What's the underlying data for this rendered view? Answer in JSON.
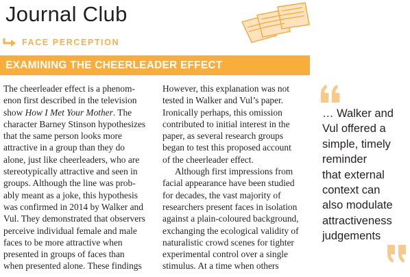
{
  "header": {
    "title": "Journal Club"
  },
  "section": {
    "label": "FACE PERCEPTION"
  },
  "banner": {
    "heading": "EXAMINING THE CHEERLEADER EFFECT"
  },
  "column_left": {
    "lines": [
      [
        "The cheerleader effect is a phenom-"
      ],
      [
        "enon first described in the television"
      ],
      [
        "show ",
        {
          "i": "How I Met Your Mother"
        },
        ". The"
      ],
      [
        "character Barney Stinson hypothesizes"
      ],
      [
        "that the same person looks more"
      ],
      [
        "attractive in a group than they do"
      ],
      [
        "alone, just like cheerleaders, who are"
      ],
      [
        "stereotypically attractive and seen in"
      ],
      [
        "groups. Although the line was prob-"
      ],
      [
        "ably meant as a joke, this hypothesis"
      ],
      [
        "was confirmed in 2014 by Walker and"
      ],
      [
        "Vul. They demonstrated that observers"
      ],
      [
        "perceive individual female and male"
      ],
      [
        "faces to be more attractive when"
      ],
      [
        "presented in groups of faces than"
      ],
      [
        "when presented alone. These findings"
      ]
    ]
  },
  "column_mid": {
    "lines": [
      [
        "However, this explanation was not"
      ],
      [
        "tested in Walker and Vul’s paper."
      ],
      [
        "Ironically perhaps, this omission"
      ],
      [
        "contributed to initial interest in the"
      ],
      [
        "paper, as several research groups"
      ],
      [
        "began to test this proposed account"
      ],
      [
        "of the cheerleader effect."
      ],
      [
        "Although first impressions from"
      ],
      [
        "facial appearance have been studied"
      ],
      [
        "for decades, the vast majority of"
      ],
      [
        "researchers present faces in isolation"
      ],
      [
        "against a plain-coloured background,"
      ],
      [
        "exchanging the ecological validity of"
      ],
      [
        "naturalistic crowd scenes for tighter"
      ],
      [
        "experimental control over a single"
      ],
      [
        "stimulus. At a time when others"
      ]
    ],
    "indent_line": 7
  },
  "pull_quote": {
    "lines": [
      "… Walker and",
      "Vul offered a",
      "simple, timely",
      "reminder",
      "that external",
      "context can",
      "also modulate",
      "attractiveness",
      "judgements"
    ]
  },
  "colors": {
    "accent": "#f8ad3c",
    "accent_light": "#f7c98a",
    "text": "#231f20"
  },
  "icons": {
    "header": "papers-stack-icon",
    "section": "arrow-right-icon",
    "quotes": [
      "open-quote-icon",
      "close-quote-icon"
    ]
  }
}
